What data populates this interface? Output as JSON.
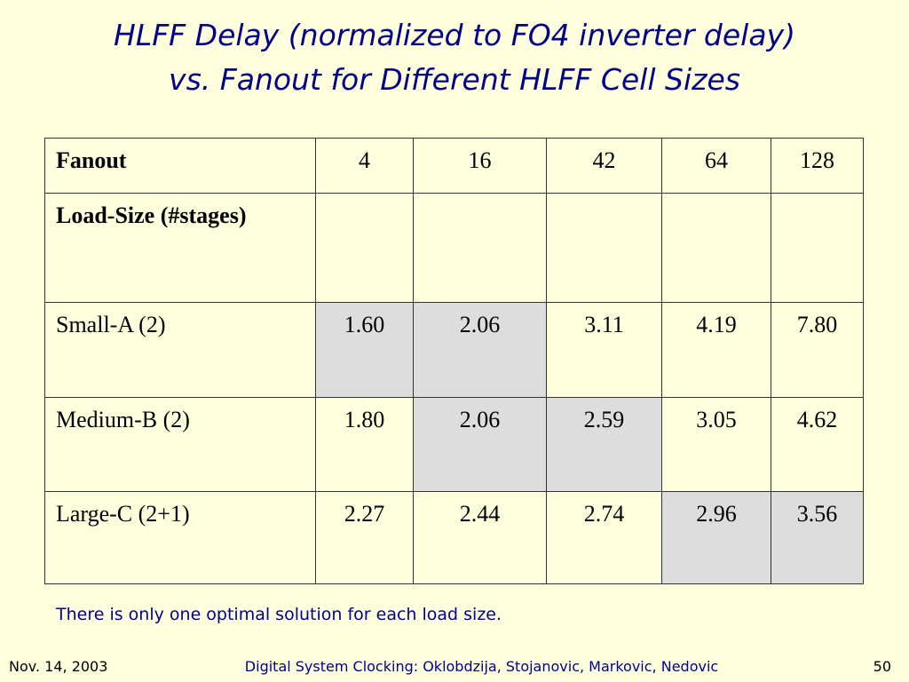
{
  "title": {
    "line1": "HLFF Delay (normalized to FO4 inverter delay)",
    "line2": "vs. Fanout for Different HLFF Cell Sizes"
  },
  "table": {
    "header": {
      "label": "Fanout",
      "values": [
        "4",
        "16",
        "42",
        "64",
        "128"
      ]
    },
    "subheader": "Load-Size (#stages)",
    "shade_color": "#dddddd",
    "rows": [
      {
        "label": "Small-A (2)",
        "cells": [
          {
            "text": "1.60",
            "shaded": true
          },
          {
            "text": "2.06",
            "shaded": true
          },
          {
            "text": "3.11",
            "shaded": false
          },
          {
            "text": "4.19",
            "shaded": false
          },
          {
            "text": "7.80",
            "shaded": false
          }
        ]
      },
      {
        "label": "Medium-B (2)",
        "cells": [
          {
            "text": "1.80",
            "shaded": false
          },
          {
            "text": "2.06",
            "shaded": true
          },
          {
            "text": "2.59",
            "shaded": true
          },
          {
            "text": "3.05",
            "shaded": false
          },
          {
            "text": "4.62",
            "shaded": false
          }
        ]
      },
      {
        "label": "Large-C (2+1)",
        "cells": [
          {
            "text": "2.27",
            "shaded": false
          },
          {
            "text": "2.44",
            "shaded": false
          },
          {
            "text": "2.74",
            "shaded": false
          },
          {
            "text": "2.96",
            "shaded": true
          },
          {
            "text": "3.56",
            "shaded": true
          }
        ]
      }
    ]
  },
  "note": "There is only one optimal solution for each load size.",
  "footer": {
    "date": "Nov. 14, 2003",
    "course": "Digital System Clocking: Oklobdzija, Stojanovic, Markovic, Nedovic",
    "page": "50"
  }
}
